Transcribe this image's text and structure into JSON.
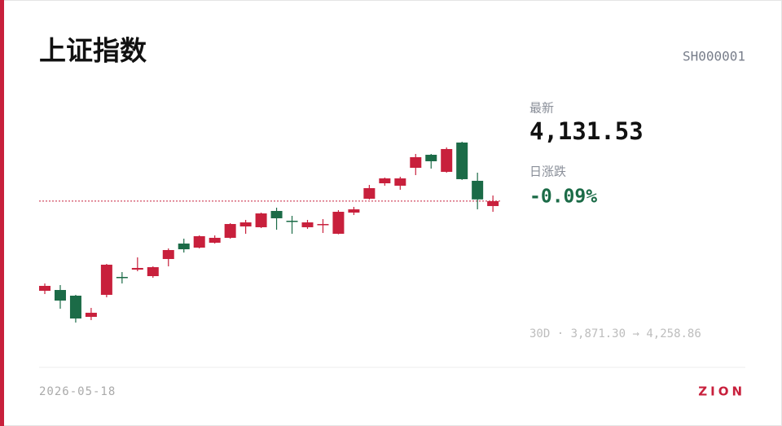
{
  "header": {
    "title": "上证指数",
    "code": "SH000001"
  },
  "quote": {
    "latest_label": "最新",
    "latest": {
      "value": 4131.53,
      "label": "4,131.53"
    },
    "change_label": "日涨跌",
    "change": {
      "value": -0.09,
      "label": "-0.09%"
    }
  },
  "range": {
    "period": "30D",
    "separator": "·",
    "low": "3,871.30",
    "arrow": "→",
    "high": "4,258.86"
  },
  "footer": {
    "date": "2026-05-18",
    "brand": "ZION"
  },
  "chart_data": {
    "type": "candlestick",
    "up_color": "#c8203c",
    "down_color": "#1b6b47",
    "ylim": [
      3871.3,
      4258.86
    ],
    "open": [
      3939.4,
      3941.1,
      3928.9,
      3883.5,
      3930.7,
      3969.1,
      3984.8,
      3970.8,
      4007.5,
      4040.6,
      4031.9,
      4042.4,
      4052.9,
      4077.3,
      4075.6,
      4110.5,
      4089.5,
      4075.6,
      4080.8,
      4061.6,
      4107.0,
      4136.7,
      4169.8,
      4164.6,
      4203.0,
      4230.9,
      4194.3,
      4257.1,
      4175.1,
      4121.0
    ],
    "high": [
      3955.1,
      3951.6,
      3930.7,
      3902.7,
      3997.0,
      3979.5,
      4011.0,
      3991.8,
      4030.2,
      4051.1,
      4058.1,
      4058.1,
      4084.3,
      4091.3,
      4107.0,
      4117.5,
      4100.0,
      4091.3,
      4093.0,
      4112.2,
      4119.2,
      4166.3,
      4182.1,
      4183.8,
      4232.7,
      4232.7,
      4246.6,
      4258.86,
      4192.5,
      4143.6
    ],
    "low": [
      3932.4,
      3901.0,
      3871.3,
      3876.5,
      3925.4,
      3955.1,
      3981.3,
      3967.3,
      3991.8,
      4021.4,
      4030.2,
      4040.6,
      4051.1,
      4061.6,
      4073.8,
      4070.3,
      4061.6,
      4072.1,
      4063.3,
      4060.5,
      4101.8,
      4134.9,
      4164.6,
      4155.9,
      4187.3,
      4201.3,
      4192.5,
      4177.0,
      4114.0,
      4108.7
    ],
    "close": [
      3949.9,
      3918.4,
      3880.0,
      3892.3,
      3995.3,
      3967.3,
      3988.3,
      3990.0,
      4026.7,
      4028.4,
      4056.4,
      4052.9,
      4082.5,
      4086.0,
      4105.2,
      4094.8,
      4087.8,
      4086.0,
      4082.5,
      4108.7,
      4114.0,
      4159.4,
      4180.3,
      4180.3,
      4225.7,
      4217.0,
      4243.2,
      4178.6,
      4135.25,
      4131.53
    ]
  }
}
